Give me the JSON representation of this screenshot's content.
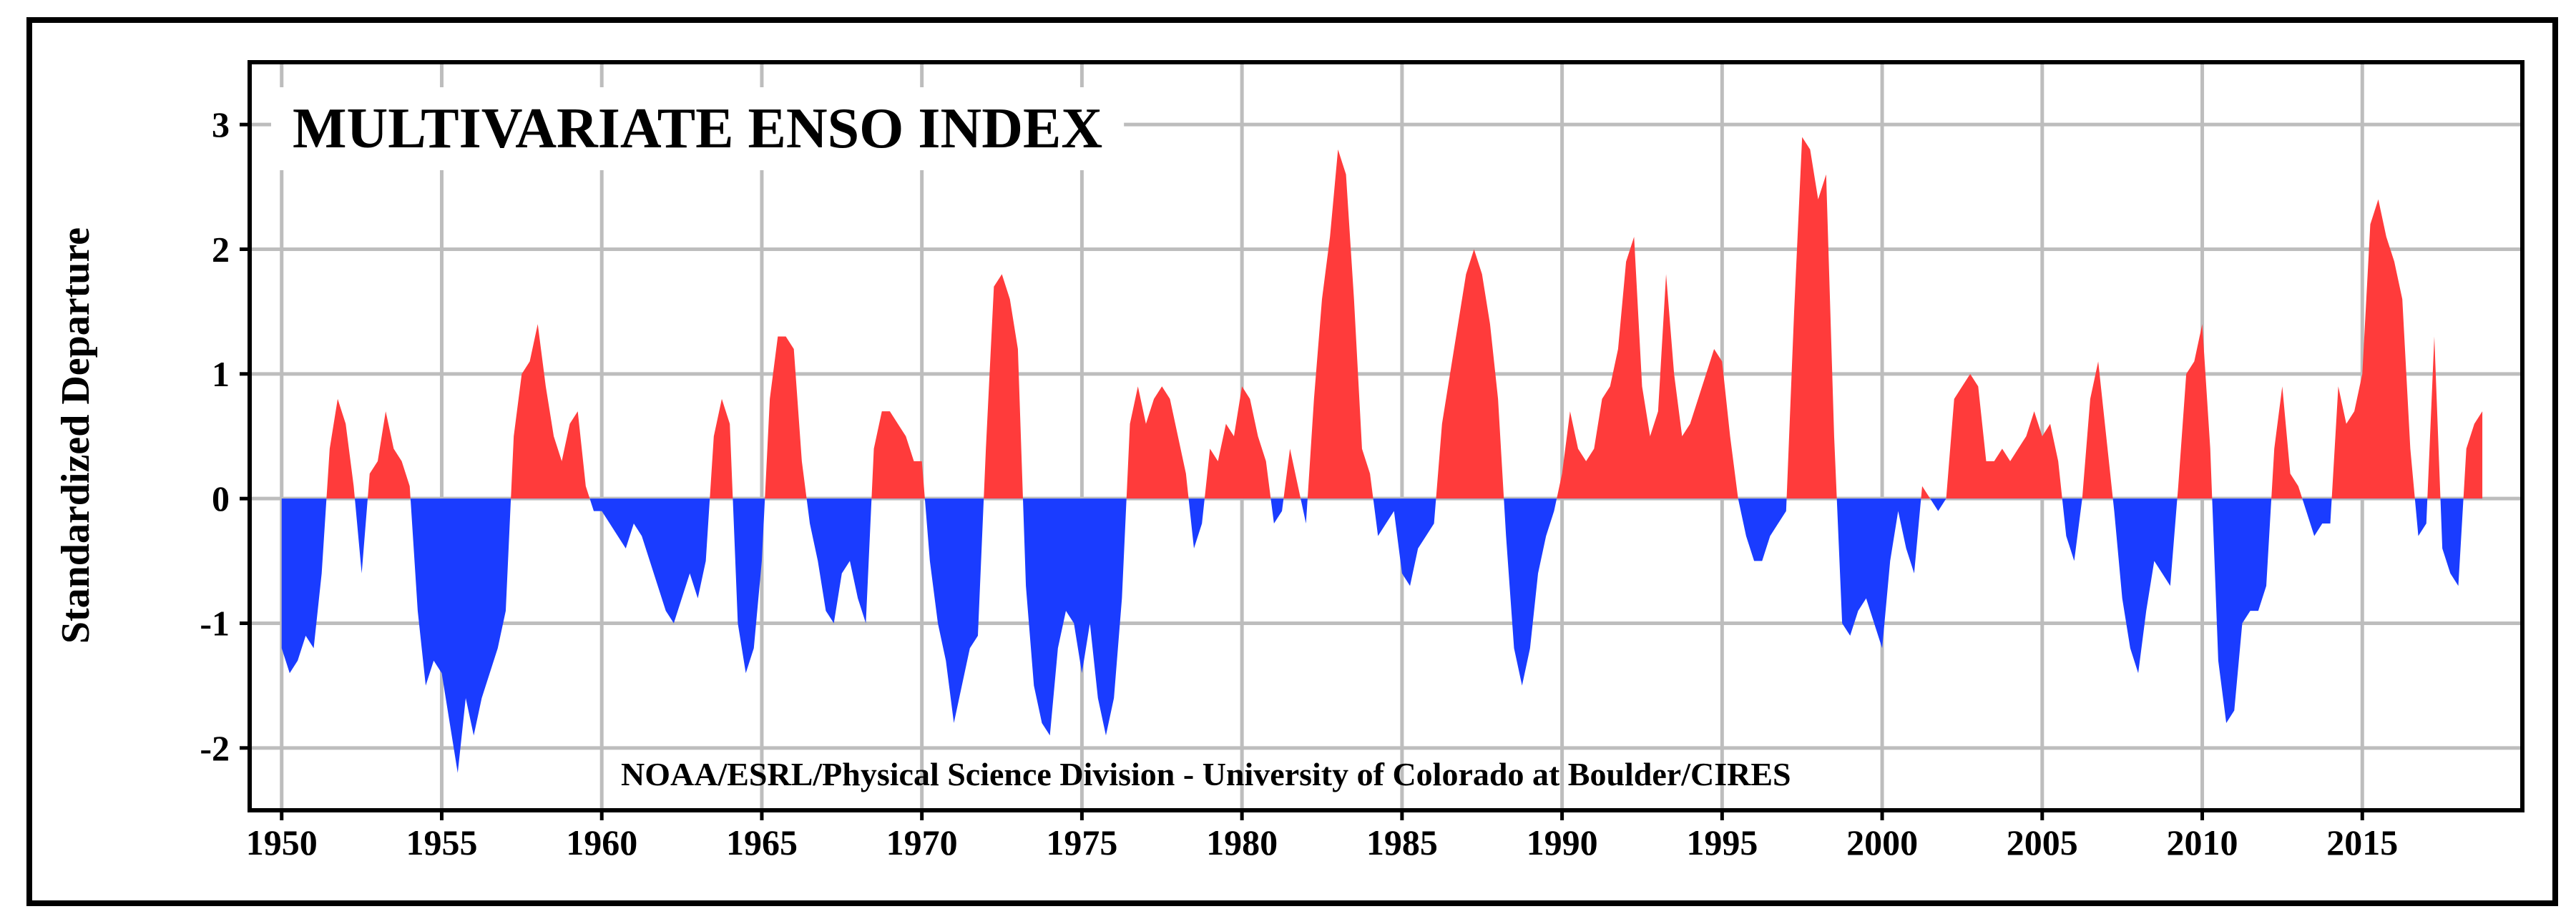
{
  "chart_data": {
    "type": "area",
    "title": "MULTIVARIATE ENSO INDEX",
    "y_label": "Standardized Departure",
    "annotation": "NOAA/ESRL/Physical Science Division - University of Colorado at Boulder/CIRES",
    "positive_color": "#ff3b3b",
    "negative_color": "#1a3cff",
    "grid": true,
    "xlim": [
      1949,
      2020
    ],
    "ylim": [
      -2.5,
      3.5
    ],
    "xticks": [
      1950,
      1955,
      1960,
      1965,
      1970,
      1975,
      1980,
      1985,
      1990,
      1995,
      2000,
      2005,
      2010,
      2015
    ],
    "yticks": [
      -2,
      -1,
      0,
      1,
      2,
      3
    ],
    "x": [
      1950,
      1950.25,
      1950.5,
      1950.75,
      1951,
      1951.25,
      1951.5,
      1951.75,
      1952,
      1952.25,
      1952.5,
      1952.75,
      1953,
      1953.25,
      1953.5,
      1953.75,
      1954,
      1954.25,
      1954.5,
      1954.75,
      1955,
      1955.25,
      1955.5,
      1955.75,
      1956,
      1956.25,
      1956.5,
      1956.75,
      1957,
      1957.25,
      1957.5,
      1957.75,
      1958,
      1958.25,
      1958.5,
      1958.75,
      1959,
      1959.25,
      1959.5,
      1959.75,
      1960,
      1960.25,
      1960.5,
      1960.75,
      1961,
      1961.25,
      1961.5,
      1961.75,
      1962,
      1962.25,
      1962.5,
      1962.75,
      1963,
      1963.25,
      1963.5,
      1963.75,
      1964,
      1964.25,
      1964.5,
      1964.75,
      1965,
      1965.25,
      1965.5,
      1965.75,
      1966,
      1966.25,
      1966.5,
      1966.75,
      1967,
      1967.25,
      1967.5,
      1967.75,
      1968,
      1968.25,
      1968.5,
      1968.75,
      1969,
      1969.25,
      1969.5,
      1969.75,
      1970,
      1970.25,
      1970.5,
      1970.75,
      1971,
      1971.25,
      1971.5,
      1971.75,
      1972,
      1972.25,
      1972.5,
      1972.75,
      1973,
      1973.25,
      1973.5,
      1973.75,
      1974,
      1974.25,
      1974.5,
      1974.75,
      1975,
      1975.25,
      1975.5,
      1975.75,
      1976,
      1976.25,
      1976.5,
      1976.75,
      1977,
      1977.25,
      1977.5,
      1977.75,
      1978,
      1978.25,
      1978.5,
      1978.75,
      1979,
      1979.25,
      1979.5,
      1979.75,
      1980,
      1980.25,
      1980.5,
      1980.75,
      1981,
      1981.25,
      1981.5,
      1981.75,
      1982,
      1982.25,
      1982.5,
      1982.75,
      1983,
      1983.25,
      1983.5,
      1983.75,
      1984,
      1984.25,
      1984.5,
      1984.75,
      1985,
      1985.25,
      1985.5,
      1985.75,
      1986,
      1986.25,
      1986.5,
      1986.75,
      1987,
      1987.25,
      1987.5,
      1987.75,
      1988,
      1988.25,
      1988.5,
      1988.75,
      1989,
      1989.25,
      1989.5,
      1989.75,
      1990,
      1990.25,
      1990.5,
      1990.75,
      1991,
      1991.25,
      1991.5,
      1991.75,
      1992,
      1992.25,
      1992.5,
      1992.75,
      1993,
      1993.25,
      1993.5,
      1993.75,
      1994,
      1994.25,
      1994.5,
      1994.75,
      1995,
      1995.25,
      1995.5,
      1995.75,
      1996,
      1996.25,
      1996.5,
      1996.75,
      1997,
      1997.25,
      1997.5,
      1997.75,
      1998,
      1998.25,
      1998.5,
      1998.75,
      1999,
      1999.25,
      1999.5,
      1999.75,
      2000,
      2000.25,
      2000.5,
      2000.75,
      2001,
      2001.25,
      2001.5,
      2001.75,
      2002,
      2002.25,
      2002.5,
      2002.75,
      2003,
      2003.25,
      2003.5,
      2003.75,
      2004,
      2004.25,
      2004.5,
      2004.75,
      2005,
      2005.25,
      2005.5,
      2005.75,
      2006,
      2006.25,
      2006.5,
      2006.75,
      2007,
      2007.25,
      2007.5,
      2007.75,
      2008,
      2008.25,
      2008.5,
      2008.75,
      2009,
      2009.25,
      2009.5,
      2009.75,
      2010,
      2010.25,
      2010.5,
      2010.75,
      2011,
      2011.25,
      2011.5,
      2011.75,
      2012,
      2012.25,
      2012.5,
      2012.75,
      2013,
      2013.25,
      2013.5,
      2013.75,
      2014,
      2014.25,
      2014.5,
      2014.75,
      2015,
      2015.25,
      2015.5,
      2015.75,
      2016,
      2016.25,
      2016.5,
      2016.75,
      2017,
      2017.25,
      2017.5,
      2017.75,
      2018,
      2018.25,
      2018.5,
      2018.75
    ],
    "values": [
      -1.2,
      -1.4,
      -1.3,
      -1.1,
      -1.2,
      -0.6,
      0.4,
      0.8,
      0.6,
      0.1,
      -0.6,
      0.2,
      0.3,
      0.7,
      0.4,
      0.3,
      0.1,
      -0.9,
      -1.5,
      -1.3,
      -1.4,
      -1.8,
      -2.2,
      -1.6,
      -1.9,
      -1.6,
      -1.4,
      -1.2,
      -0.9,
      0.5,
      1.0,
      1.1,
      1.4,
      0.9,
      0.5,
      0.3,
      0.6,
      0.7,
      0.1,
      -0.1,
      -0.1,
      -0.2,
      -0.3,
      -0.4,
      -0.2,
      -0.3,
      -0.5,
      -0.7,
      -0.9,
      -1.0,
      -0.8,
      -0.6,
      -0.8,
      -0.5,
      0.5,
      0.8,
      0.6,
      -1.0,
      -1.4,
      -1.2,
      -0.5,
      0.8,
      1.3,
      1.3,
      1.2,
      0.3,
      -0.2,
      -0.5,
      -0.9,
      -1.0,
      -0.6,
      -0.5,
      -0.8,
      -1.0,
      0.4,
      0.7,
      0.7,
      0.6,
      0.5,
      0.3,
      0.3,
      -0.5,
      -1.0,
      -1.3,
      -1.8,
      -1.5,
      -1.2,
      -1.1,
      0.4,
      1.7,
      1.8,
      1.6,
      1.2,
      -0.7,
      -1.5,
      -1.8,
      -1.9,
      -1.2,
      -0.9,
      -1.0,
      -1.4,
      -1.0,
      -1.6,
      -1.9,
      -1.6,
      -0.8,
      0.6,
      0.9,
      0.6,
      0.8,
      0.9,
      0.8,
      0.5,
      0.2,
      -0.4,
      -0.2,
      0.4,
      0.3,
      0.6,
      0.5,
      0.9,
      0.8,
      0.5,
      0.3,
      -0.2,
      -0.1,
      0.4,
      0.1,
      -0.2,
      0.8,
      1.6,
      2.1,
      2.8,
      2.6,
      1.6,
      0.4,
      0.2,
      -0.3,
      -0.2,
      -0.1,
      -0.6,
      -0.7,
      -0.4,
      -0.3,
      -0.2,
      0.6,
      1.0,
      1.4,
      1.8,
      2.0,
      1.8,
      1.4,
      0.8,
      -0.3,
      -1.2,
      -1.5,
      -1.2,
      -0.6,
      -0.3,
      -0.1,
      0.2,
      0.7,
      0.4,
      0.3,
      0.4,
      0.8,
      0.9,
      1.2,
      1.9,
      2.1,
      0.9,
      0.5,
      0.7,
      1.8,
      1.0,
      0.5,
      0.6,
      0.8,
      1.0,
      1.2,
      1.1,
      0.5,
      0.0,
      -0.3,
      -0.5,
      -0.5,
      -0.3,
      -0.2,
      -0.1,
      1.5,
      2.9,
      2.8,
      2.4,
      2.6,
      0.5,
      -1.0,
      -1.1,
      -0.9,
      -0.8,
      -1.0,
      -1.2,
      -0.5,
      -0.1,
      -0.4,
      -0.6,
      0.1,
      0.0,
      -0.1,
      0.0,
      0.8,
      0.9,
      1.0,
      0.9,
      0.3,
      0.3,
      0.4,
      0.3,
      0.4,
      0.5,
      0.7,
      0.5,
      0.6,
      0.3,
      -0.3,
      -0.5,
      0.0,
      0.8,
      1.1,
      0.5,
      -0.1,
      -0.8,
      -1.2,
      -1.4,
      -0.9,
      -0.5,
      -0.6,
      -0.7,
      0.1,
      1.0,
      1.1,
      1.4,
      0.4,
      -1.3,
      -1.8,
      -1.7,
      -1.0,
      -0.9,
      -0.9,
      -0.7,
      0.4,
      0.9,
      0.2,
      0.1,
      -0.1,
      -0.3,
      -0.2,
      -0.2,
      0.9,
      0.6,
      0.7,
      1.0,
      2.2,
      2.4,
      2.1,
      1.9,
      1.6,
      0.4,
      -0.3,
      -0.2,
      1.3,
      -0.4,
      -0.6,
      -0.7,
      0.4,
      0.6,
      0.7
    ]
  }
}
